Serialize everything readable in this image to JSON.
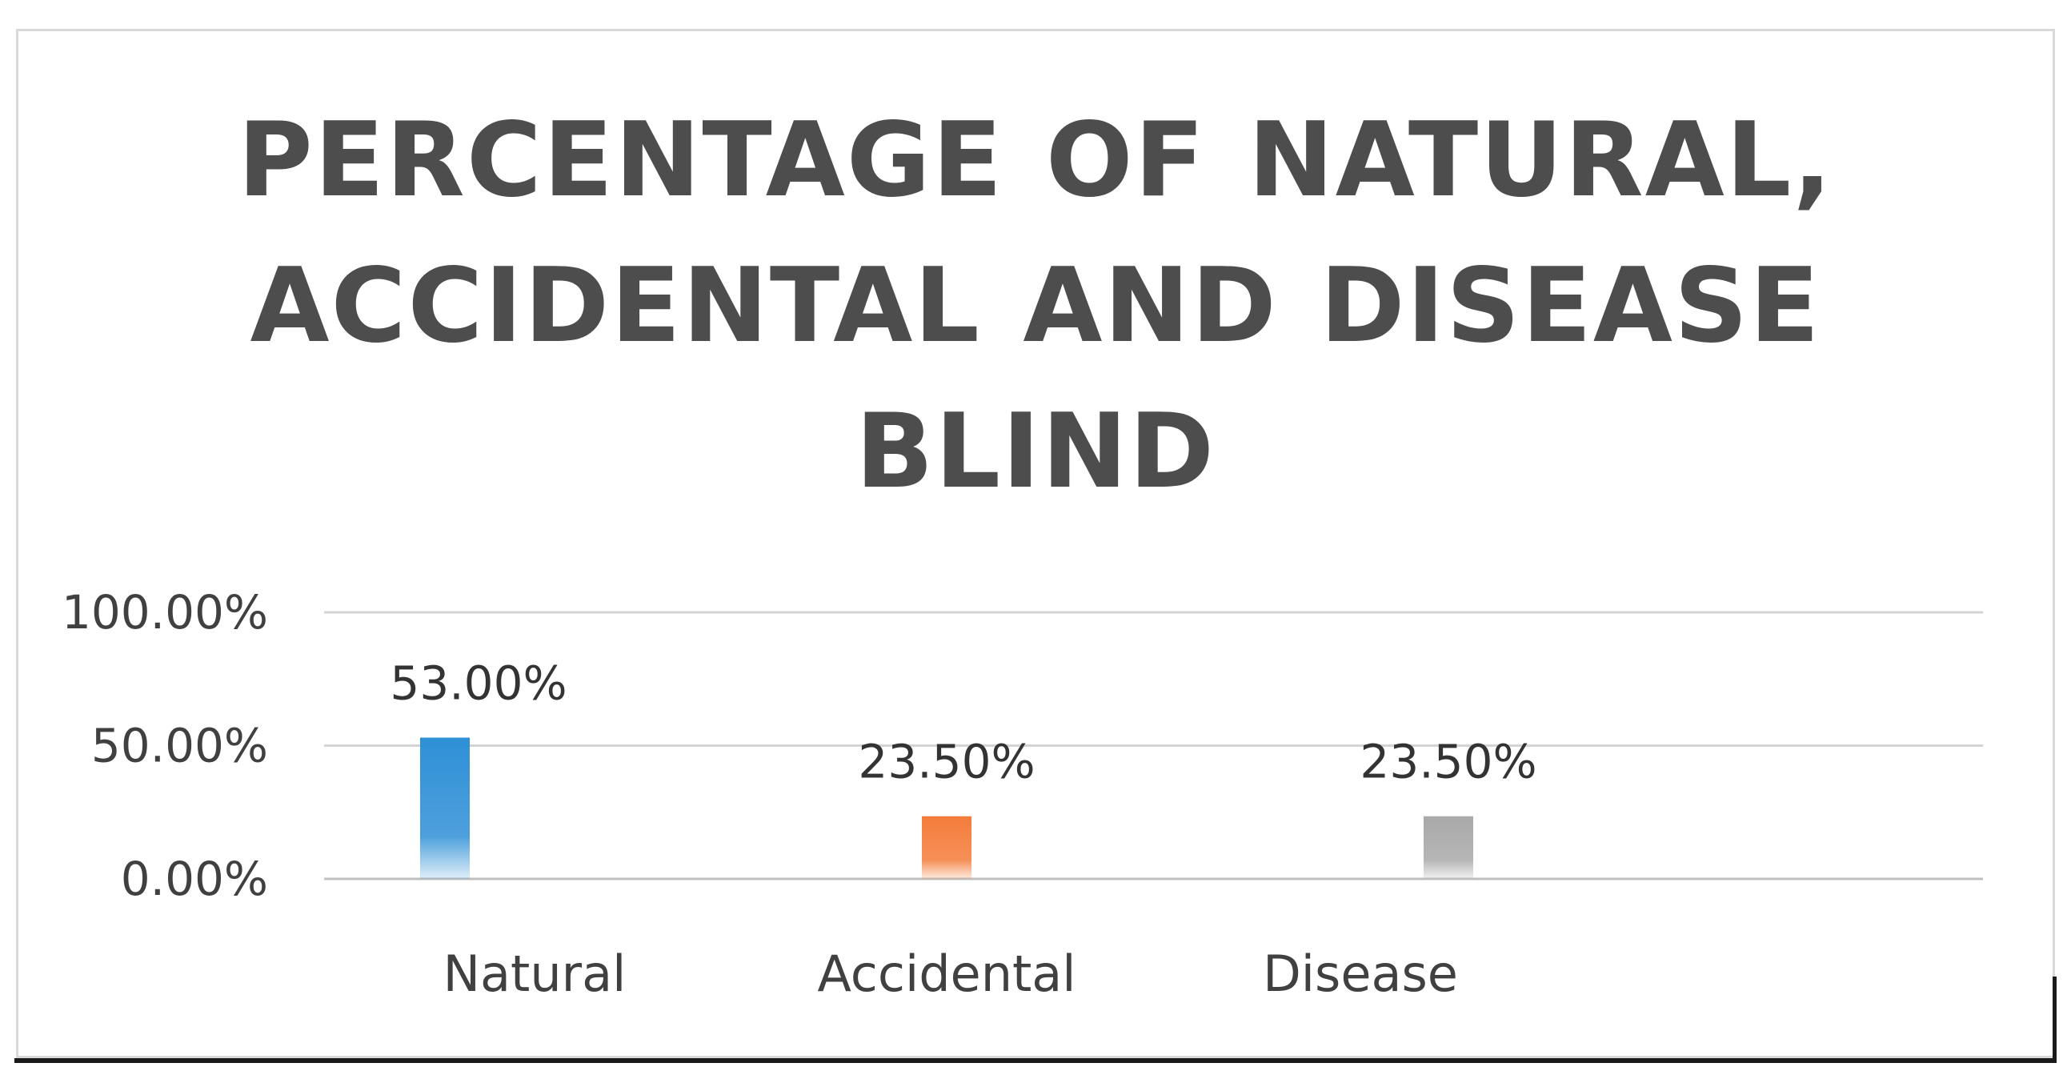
{
  "chart_data": {
    "type": "bar",
    "title": "PERCENTAGE OF NATURAL, ACCIDENTAL AND DISEASE BLIND",
    "categories": [
      "Natural",
      "Accidental",
      "Disease"
    ],
    "values": [
      53.0,
      23.5,
      23.5
    ],
    "data_labels": [
      "53.00%",
      "23.50%",
      "23.50%"
    ],
    "colors": [
      "#2e8fd6",
      "#f47c3a",
      "#a9a9a9"
    ],
    "ylim": [
      0,
      100
    ],
    "yticks": [
      0,
      50,
      100
    ],
    "ytick_labels": [
      "0.00%",
      "50.00%",
      "100.00%"
    ],
    "xlabel": "",
    "ylabel": "",
    "grid": true,
    "legend": "none"
  }
}
